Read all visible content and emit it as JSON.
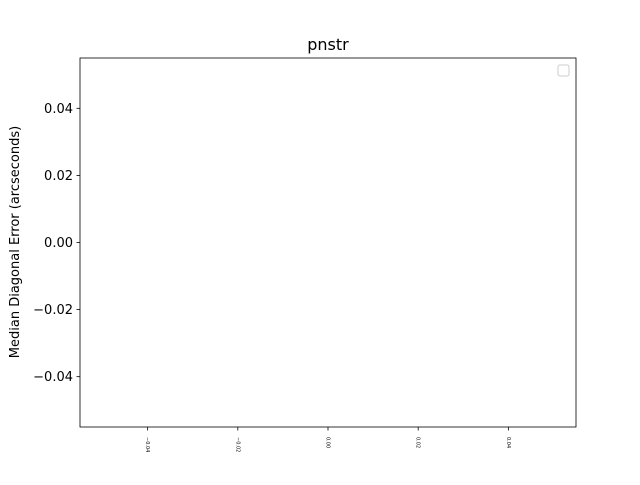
{
  "chart_data": {
    "type": "line",
    "title": "pnstr",
    "xlabel": "",
    "ylabel": "Median Diagonal Error (arcseconds)",
    "xlim": [
      -0.055,
      0.055
    ],
    "ylim": [
      -0.055,
      0.055
    ],
    "xticks": [
      -0.04,
      -0.02,
      0.0,
      0.02,
      0.04
    ],
    "xtick_labels": [
      "−0.04",
      "−0.02",
      "0.00",
      "0.02",
      "0.04"
    ],
    "yticks": [
      0.04,
      0.02,
      0.0,
      -0.02,
      -0.04
    ],
    "ytick_labels": [
      "0.04",
      "0.02",
      "0.00",
      "−0.02",
      "−0.04"
    ],
    "grid": false,
    "legend": {
      "placement": "top-right",
      "entries": []
    },
    "series": []
  }
}
